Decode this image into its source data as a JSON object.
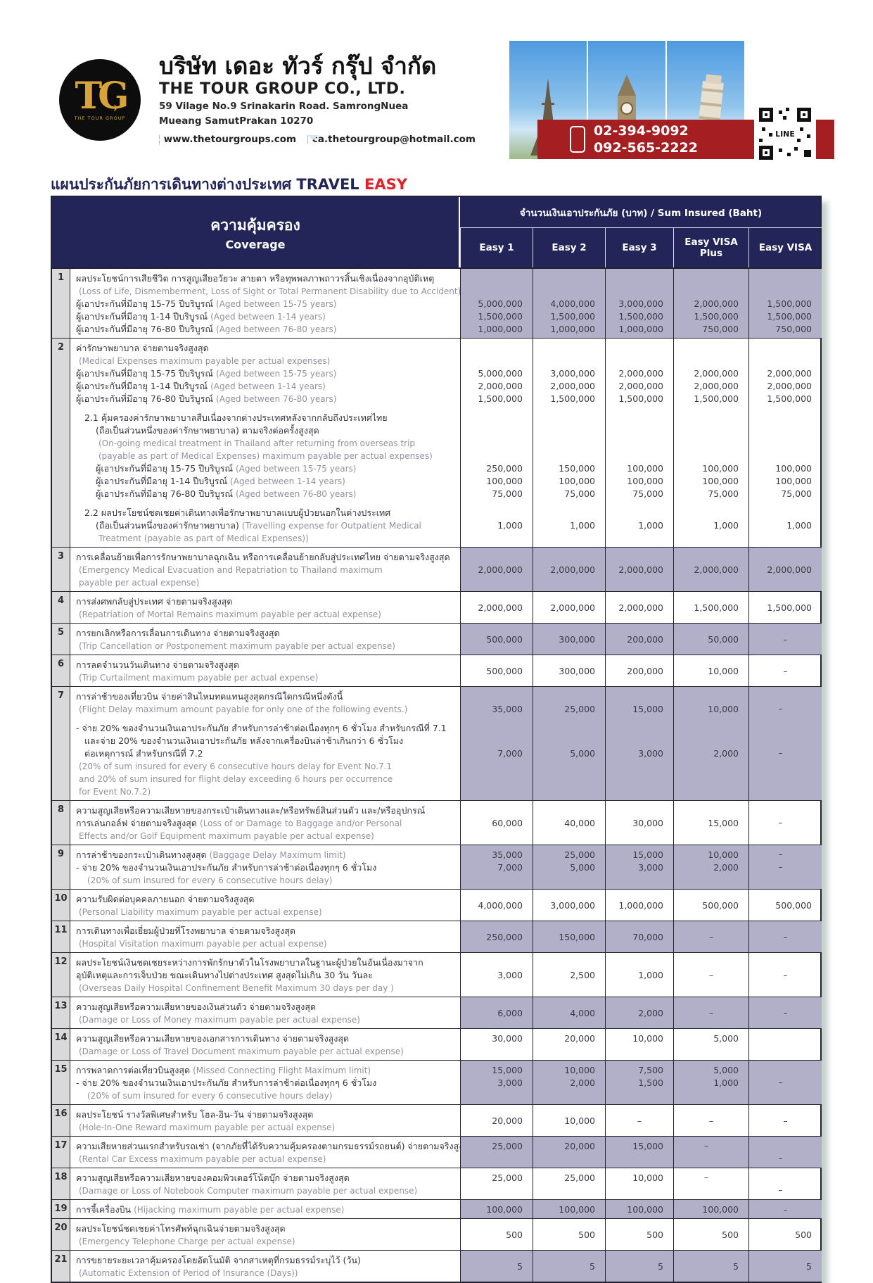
{
  "colors": {
    "navy": "#232558",
    "lavender": "#b2afc9",
    "red": "#e02328",
    "banner_red": "#a51e22",
    "gold": "#d8a437"
  },
  "header": {
    "logo_monogram": "TG",
    "logo_plane": "✈",
    "logo_text": "THE TOUR GROUP",
    "company_th": "บริษัท เดอะ ทัวร์ กรุ๊ป จำกัด",
    "company_en": "THE TOUR GROUP CO., LTD.",
    "address1": "59 Vilage No.9 Srinakarin Road. SamrongNuea",
    "address2": "Mueang SamutPrakan 10270",
    "website": "www.thetourgroups.com",
    "email": "ca.thetourgroup@hotmail.com",
    "phone1": "02-394-9092",
    "phone2": "092-565-2222",
    "line_label": "LINE"
  },
  "title": {
    "th": "แผนประกันภัยการเดินทางต่างประเทศ",
    "travel": "TRAVEL",
    "easy": "EASY"
  },
  "table": {
    "coverage_th": "ความคุ้มครอง",
    "coverage_en": "Coverage",
    "sum_insured": "จำนวนเงินเอาประกันภัย (บาท) / Sum Insured (Baht)",
    "plans": [
      "Easy 1",
      "Easy 2",
      "Easy 3",
      "Easy VISA Plus",
      "Easy VISA"
    ],
    "rows": [
      {
        "num": "1",
        "shaded": true,
        "lines": [
          {
            "th": "ผลประโยชน์การเสียชีวิต การสูญเสียอวัยวะ สายตา หรือทุพพลภาพถาวรสิ้นเชิงเนื่องจากอุบัติเหตุ"
          },
          {
            "en": "(Loss of Life, Dismemberment, Loss of Sight or Total Permanent Disability due to Accident)"
          },
          {
            "th": "ผู้เอาประกันที่มีอายุ 15-75 ปีบริบูรณ์",
            "en": "(Aged between 15-75 years)",
            "vals": [
              "5,000,000",
              "4,000,000",
              "3,000,000",
              "2,000,000",
              "1,500,000"
            ]
          },
          {
            "th": "ผู้เอาประกันที่มีอายุ 1-14 ปีบริบูรณ์",
            "en": "(Aged between 1-14 years)",
            "vals": [
              "1,500,000",
              "1,500,000",
              "1,500,000",
              "1,500,000",
              "1,500,000"
            ]
          },
          {
            "th": "ผู้เอาประกันที่มีอายุ 76-80 ปีบริบูรณ์",
            "en": "(Aged between 76-80 years)",
            "vals": [
              "1,000,000",
              "1,000,000",
              "1,000,000",
              "750,000",
              "750,000"
            ]
          }
        ]
      },
      {
        "num": "2",
        "shaded": false,
        "lines": [
          {
            "th": "ค่ารักษาพยาบาล จ่ายตามจริงสูงสุด"
          },
          {
            "en": "(Medical Expenses maximum payable per actual expenses)"
          },
          {
            "th": "ผู้เอาประกันที่มีอายุ 15-75 ปีบริบูรณ์",
            "en": "(Aged between 15-75 years)",
            "vals": [
              "5,000,000",
              "3,000,000",
              "2,000,000",
              "2,000,000",
              "2,000,000"
            ]
          },
          {
            "th": "ผู้เอาประกันที่มีอายุ 1-14 ปีบริบูรณ์",
            "en": "(Aged between 1-14 years)",
            "vals": [
              "2,000,000",
              "2,000,000",
              "2,000,000",
              "2,000,000",
              "2,000,000"
            ]
          },
          {
            "th": "ผู้เอาประกันที่มีอายุ 76-80 ปีบริบูรณ์",
            "en": "(Aged between 76-80 years)",
            "vals": [
              "1,500,000",
              "1,500,000",
              "1,500,000",
              "1,500,000",
              "1,500,000"
            ]
          },
          {
            "gap": true
          },
          {
            "th": "2.1 คุ้มครองค่ารักษาพยาบาลสืบเนื่องจากต่างประเทศหลังจากกลับถึงประเทศไทย",
            "ind": 1
          },
          {
            "th": "(ถือเป็นส่วนหนึ่งของค่ารักษาพยาบาล) ตามจริงต่อครั้งสูงสุด",
            "ind": 2
          },
          {
            "en": "(On-going medical treatment in Thailand after returning from overseas trip",
            "ind": 2
          },
          {
            "en": "(payable as part of Medical Expenses) maximum payable per actual expenses)",
            "ind": 2
          },
          {
            "th": "ผู้เอาประกันที่มีอายุ 15-75 ปีบริบูรณ์",
            "en": "(Aged between 15-75 years)",
            "ind": 2,
            "vals": [
              "250,000",
              "150,000",
              "100,000",
              "100,000",
              "100,000"
            ]
          },
          {
            "th": "ผู้เอาประกันที่มีอายุ 1-14 ปีบริบูรณ์",
            "en": "(Aged between 1-14 years)",
            "ind": 2,
            "vals": [
              "100,000",
              "100,000",
              "100,000",
              "100,000",
              "100,000"
            ]
          },
          {
            "th": "ผู้เอาประกันที่มีอายุ 76-80 ปีบริบูรณ์",
            "en": "(Aged between 76-80 years)",
            "ind": 2,
            "vals": [
              "75,000",
              "75,000",
              "75,000",
              "75,000",
              "75,000"
            ]
          },
          {
            "gap": true
          },
          {
            "th": "2.2 ผลประโยชน์ชดเชยค่าเดินทางเพื่อรักษาพยาบาลแบบผู้ป่วยนอกในต่างประเทศ",
            "ind": 1
          },
          {
            "th": "(ถือเป็นส่วนหนึ่งของค่ารักษาพยาบาล)",
            "en": "(Travelling expense for Outpatient Medical",
            "ind": 2,
            "vals": [
              "1,000",
              "1,000",
              "1,000",
              "1,000",
              "1,000"
            ]
          },
          {
            "en": "Treatment (payable as part of Medical Expenses))",
            "ind": 2
          }
        ]
      },
      {
        "num": "3",
        "shaded": true,
        "vals": [
          "2,000,000",
          "2,000,000",
          "2,000,000",
          "2,000,000",
          "2,000,000"
        ],
        "lines": [
          {
            "th": "การเคลื่อนย้ายเพื่อการรักษาพยาบาลฉุกเฉิน หรือการเคลื่อนย้ายกลับสู่ประเทศไทย จ่ายตามจริงสูงสุด"
          },
          {
            "en": "(Emergency Medical Evacuation and Repatriation to Thailand maximum"
          },
          {
            "en": "payable per actual expense)"
          }
        ]
      },
      {
        "num": "4",
        "shaded": false,
        "vals": [
          "2,000,000",
          "2,000,000",
          "2,000,000",
          "1,500,000",
          "1,500,000"
        ],
        "lines": [
          {
            "th": "การส่งศพกลับสู่ประเทศ จ่ายตามจริงสูงสุด"
          },
          {
            "en": "(Repatriation of Mortal Remains maximum payable per actual expense)"
          }
        ]
      },
      {
        "num": "5",
        "shaded": true,
        "vals": [
          "500,000",
          "300,000",
          "200,000",
          "50,000",
          "–"
        ],
        "lines": [
          {
            "th": "การยกเลิกหรือการเลื่อนการเดินทาง จ่ายตามจริงสูงสุด"
          },
          {
            "en": "(Trip Cancellation or Postponement maximum payable per actual expense)"
          }
        ]
      },
      {
        "num": "6",
        "shaded": false,
        "vals": [
          "500,000",
          "300,000",
          "200,000",
          "10,000",
          "–"
        ],
        "lines": [
          {
            "th": "การลดจำนวนวันเดินทาง จ่ายตามจริงสูงสุด"
          },
          {
            "en": "(Trip Curtailment maximum payable per actual expense)"
          }
        ]
      },
      {
        "num": "7",
        "shaded": true,
        "lines": [
          {
            "th": "การล่าช้าของเที่ยวบิน จ่ายค่าสินไหมทดแทนสูงสุดกรณีใดกรณีหนึ่งดังนี้"
          },
          {
            "en": "(Flight Delay maximum amount payable for only one of the following events.)",
            "vals": [
              "35,000",
              "25,000",
              "15,000",
              "10,000",
              "–"
            ]
          },
          {
            "gap": true
          },
          {
            "th": "- จ่าย 20% ของจำนวนเงินเอาประกันภัย สำหรับการล่าช้าต่อเนื่องทุกๆ 6 ชั่วโมง สำหรับกรณีที่ 7.1"
          },
          {
            "th": "และจ่าย 20% ของจำนวนเงินเอาประกันภัย หลังจากเครื่องบินล่าช้าเกินกว่า 6 ชั่วโมง",
            "ind": 1
          },
          {
            "th": "ต่อเหตุการณ์ สำหรับกรณีที่ 7.2",
            "ind": 1,
            "vals": [
              "7,000",
              "5,000",
              "3,000",
              "2,000",
              "–"
            ]
          },
          {
            "en": "(20% of sum insured for every 6 consecutive hours delay for Event No.7.1"
          },
          {
            "en": "and 20% of sum insured for flight delay exceeding 6 hours per occurrence"
          },
          {
            "en": "for Event No.7.2)"
          }
        ]
      },
      {
        "num": "8",
        "shaded": false,
        "lines": [
          {
            "th": "ความสูญเสียหรือความเสียหายของกระเป๋าเดินทางและ/หรือทรัพย์สินส่วนตัว และ/หรืออุปกรณ์"
          },
          {
            "th": "การเล่นกอล์ฟ จ่ายตามจริงสูงสุด",
            "en": "(Loss of or Damage to Baggage and/or Personal",
            "vals": [
              "60,000",
              "40,000",
              "30,000",
              "15,000",
              "–"
            ]
          },
          {
            "en": "Effects and/or Golf Equipment maximum payable per actual expense)"
          }
        ]
      },
      {
        "num": "9",
        "shaded": true,
        "lines": [
          {
            "th": "การล่าช้าของกระเป๋าเดินทางสูงสุด",
            "en": "(Baggage Delay Maximum limit)",
            "vals": [
              "35,000",
              "25,000",
              "15,000",
              "10,000",
              "–"
            ]
          },
          {
            "th": "- จ่าย 20% ของจำนวนเงินเอาประกันภัย สำหรับการล่าช้าต่อเนื่องทุกๆ 6 ชั่วโมง",
            "vals": [
              "7,000",
              "5,000",
              "3,000",
              "2,000",
              "–"
            ]
          },
          {
            "en": "(20% of sum insured for every 6 consecutive hours delay)",
            "ind": 1
          }
        ]
      },
      {
        "num": "10",
        "shaded": false,
        "vals": [
          "4,000,000",
          "3,000,000",
          "1,000,000",
          "500,000",
          "500,000"
        ],
        "lines": [
          {
            "th": "ความรับผิดต่อบุคคลภายนอก จ่ายตามจริงสูงสุด"
          },
          {
            "en": "(Personal Liability maximum payable per actual expense)"
          }
        ]
      },
      {
        "num": "11",
        "shaded": true,
        "vals": [
          "250,000",
          "150,000",
          "70,000",
          "–",
          "–"
        ],
        "lines": [
          {
            "th": "การเดินทางเพื่อเยี่ยมผู้ป่วยที่โรงพยาบาล จ่ายตามจริงสูงสุด"
          },
          {
            "en": "(Hospital Visitation maximum payable per actual expense)"
          }
        ]
      },
      {
        "num": "12",
        "shaded": false,
        "vals": [
          "3,000",
          "2,500",
          "1,000",
          "–",
          "–"
        ],
        "lines": [
          {
            "th": "ผลประโยชน์เงินชดเชยระหว่างการพักรักษาตัวในโรงพยาบาลในฐานะผู้ป่วยในอันเนื่องมาจาก"
          },
          {
            "th": "อุบัติเหตุและการเจ็บป่วย ขณะเดินทางไปต่างประเทศ สูงสุดไม่เกิน 30 วัน วันละ"
          },
          {
            "en": "(Overseas Daily Hospital Confinement Benefit Maximum 30 days per day )"
          }
        ]
      },
      {
        "num": "13",
        "shaded": true,
        "vals": [
          "6,000",
          "4,000",
          "2,000",
          "–",
          "–"
        ],
        "lines": [
          {
            "th": "ความสูญเสียหรือความเสียหายของเงินส่วนตัว จ่ายตามจริงสูงสุด"
          },
          {
            "en": "(Damage or Loss of Money maximum payable per actual expense)"
          }
        ]
      },
      {
        "num": "14",
        "shaded": false,
        "lines": [
          {
            "th": "ความสูญเสียหรือความเสียหายของเอกสารการเดินทาง จ่ายตามจริงสูงสุด",
            "vals": [
              "30,000",
              "20,000",
              "10,000",
              "5,000",
              ""
            ]
          },
          {
            "en": "(Damage or Loss of Travel Document maximum payable per actual expense)"
          }
        ]
      },
      {
        "num": "15",
        "shaded": true,
        "lines": [
          {
            "th": "การพลาดการต่อเที่ยวบินสูงสุด",
            "en": "(Missed Connecting Flight Maximum limit)",
            "vals": [
              "15,000",
              "10,000",
              "7,500",
              "5,000",
              ""
            ]
          },
          {
            "th": "- จ่าย 20% ของจำนวนเงินเอาประกันภัย สำหรับการล่าช้าต่อเนื่องทุกๆ 6 ชั่วโมง",
            "vals": [
              "3,000",
              "2,000",
              "1,500",
              "1,000",
              "–"
            ]
          },
          {
            "en": "(20% of sum insured for every 6 consecutive hours delay)",
            "ind": 1
          }
        ]
      },
      {
        "num": "16",
        "shaded": false,
        "vals": [
          "20,000",
          "10,000",
          "–",
          "–",
          "–"
        ],
        "lines": [
          {
            "th": "ผลประโยชน์ รางวัลพิเศษสำหรับ โฮล-อิน-วัน จ่ายตามจริงสูงสุด"
          },
          {
            "en": "(Hole-In-One Reward maximum payable per actual expense)"
          }
        ]
      },
      {
        "num": "17",
        "shaded": true,
        "lines": [
          {
            "th": "ความเสียหายส่วนแรกสำหรับรถเช่า (จากภัยที่ได้รับความคุ้มครองตามกรมธรรม์รถยนต์) จ่ายตามจริงสูงสุด",
            "vals": [
              "25,000",
              "20,000",
              "15,000",
              "–",
              ""
            ]
          },
          {
            "en": "(Rental Car Excess maximum payable per actual expense)",
            "vals": [
              "",
              "",
              "",
              "",
              "–"
            ]
          }
        ]
      },
      {
        "num": "18",
        "shaded": false,
        "lines": [
          {
            "th": "ความสูญเสียหรือความเสียหายของคอมพิวเตอร์โน้ตบุ๊ก จ่ายตามจริงสูงสุด",
            "vals": [
              "25,000",
              "25,000",
              "10,000",
              "–",
              ""
            ]
          },
          {
            "en": "(Damage or Loss of Notebook Computer maximum payable per actual expense)",
            "vals": [
              "",
              "",
              "",
              "",
              "–"
            ]
          }
        ]
      },
      {
        "num": "19",
        "shaded": true,
        "vals": [
          "100,000",
          "100,000",
          "100,000",
          "100,000",
          "–"
        ],
        "lines": [
          {
            "th": "การจี้เครื่องบิน",
            "en": "(Hijacking maximum payable per actual expense)"
          }
        ]
      },
      {
        "num": "20",
        "shaded": false,
        "vals": [
          "500",
          "500",
          "500",
          "500",
          "500"
        ],
        "lines": [
          {
            "th": "ผลประโยชน์ชดเชยค่าโทรศัพท์ฉุกเฉินจ่ายตามจริงสูงสุด"
          },
          {
            "en": "(Emergency Telephone Charge per actual expense)"
          }
        ]
      },
      {
        "num": "21",
        "shaded": true,
        "vals": [
          "5",
          "5",
          "5",
          "5",
          "5"
        ],
        "lines": [
          {
            "th": "การขยายระยะเวลาคุ้มครองโดยอัตโนมัติ จากสาเหตุที่กรมธรรม์ระบุไว้ (วัน)"
          },
          {
            "en": "(Automatic Extension of Period of Insurance (Days))"
          }
        ]
      }
    ]
  }
}
